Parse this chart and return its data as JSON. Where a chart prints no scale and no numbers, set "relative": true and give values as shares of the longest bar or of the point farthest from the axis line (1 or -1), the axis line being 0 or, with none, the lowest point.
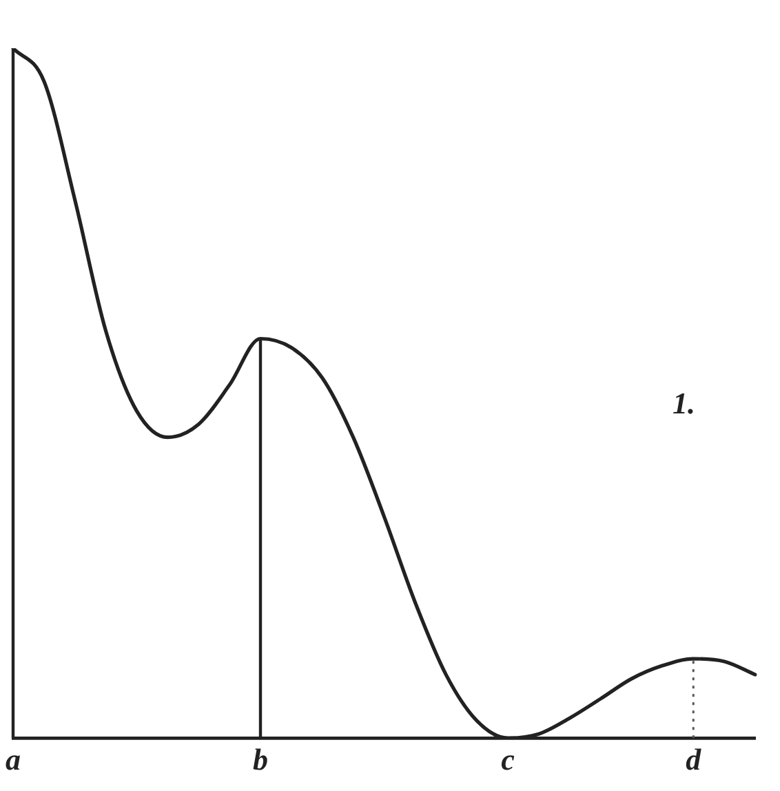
{
  "chart_data": {
    "type": "line",
    "relative": true,
    "marker": "none",
    "line_style": "solid",
    "grid": false,
    "legend": false,
    "categories": [
      "a",
      null,
      null,
      null,
      null,
      null,
      null,
      null,
      "b",
      null,
      null,
      null,
      null,
      null,
      null,
      null,
      "c",
      null,
      null,
      null,
      null,
      null,
      "d",
      null,
      null
    ],
    "series": [
      {
        "color": "#222222",
        "values": [
          1.0,
          0.952,
          0.78,
          0.59,
          0.474,
          0.436,
          0.455,
          0.512,
          0.579,
          0.566,
          0.522,
          0.436,
          0.321,
          0.197,
          0.092,
          0.025,
          0,
          0.006,
          0.029,
          0.057,
          0.086,
          0.105,
          0.115,
          0.111,
          0.092
        ]
      }
    ],
    "ref_lines": [
      {
        "axis": "x",
        "value": "a",
        "color": "#222222",
        "line_style": "solid"
      },
      {
        "axis": "x",
        "value": "b",
        "color": "#222222",
        "line_style": "solid"
      },
      {
        "axis": "x",
        "value": "d",
        "color": "#555555",
        "line_style": "dotted"
      }
    ],
    "annotations": [
      "1."
    ]
  }
}
